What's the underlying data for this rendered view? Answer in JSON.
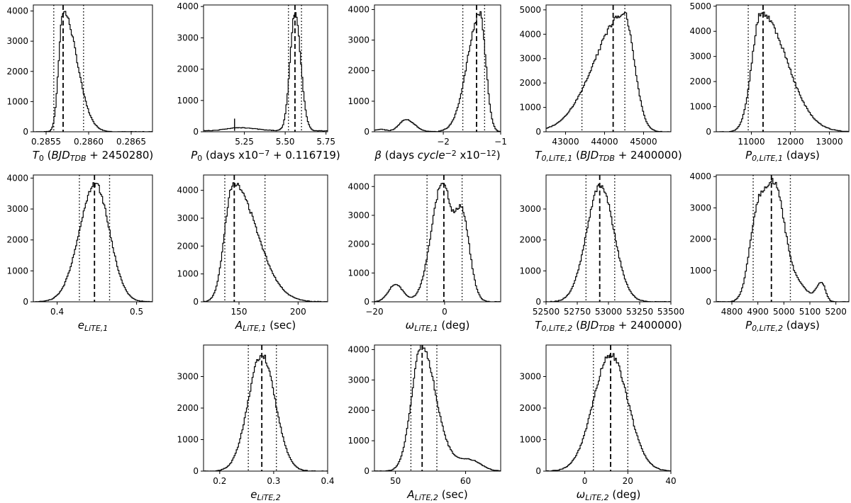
{
  "chart_data": [
    {
      "type": "histogram",
      "panel": "T0",
      "xlim": [
        0.28535,
        0.28675
      ],
      "ylim": [
        0,
        4200
      ],
      "xticks": [
        0.2855,
        0.286,
        0.2865
      ],
      "xtick_labels": [
        "0.2855",
        "0.2860",
        "0.2865"
      ],
      "yticks": [
        0,
        1000,
        2000,
        3000,
        4000
      ],
      "ytick_labels": [
        "0",
        "1000",
        "2000",
        "3000",
        "4000"
      ],
      "xlabel": "T₀ (BJD_TDB + 2450280)",
      "median": 0.2857,
      "lo": 0.28559,
      "hi": 0.28594,
      "components": [
        {
          "mu": 0.2857,
          "sl": 5e-05,
          "sr": 0.00016,
          "a": 4000
        }
      ]
    },
    {
      "type": "histogram",
      "panel": "P0",
      "xlim": [
        5.0,
        5.76
      ],
      "ylim": [
        0,
        4050
      ],
      "xticks": [
        5.25,
        5.5,
        5.75
      ],
      "xtick_labels": [
        "5.25",
        "5.50",
        "5.75"
      ],
      "yticks": [
        0,
        1000,
        2000,
        3000,
        4000
      ],
      "ytick_labels": [
        "0",
        "1000",
        "2000",
        "3000",
        "4000"
      ],
      "xlabel": "P₀ (days x10⁻⁷ + 0.116719)",
      "median": 5.56,
      "lo": 5.52,
      "hi": 5.6,
      "components": [
        {
          "mu": 5.56,
          "sl": 0.03,
          "sr": 0.035,
          "a": 3800
        },
        {
          "mu": 5.22,
          "sl": 0.08,
          "sr": 0.1,
          "a": 100
        }
      ],
      "floor": 30
    },
    {
      "type": "histogram",
      "panel": "beta",
      "xlim": [
        -3.2,
        -1.0
      ],
      "ylim": [
        0,
        4150
      ],
      "xticks": [
        -2,
        -1
      ],
      "xtick_labels": [
        "−2",
        "−1"
      ],
      "yticks": [
        0,
        1000,
        2000,
        3000,
        4000
      ],
      "ytick_labels": [
        "0",
        "1000",
        "2000",
        "3000",
        "4000"
      ],
      "xlabel": "β (days cycle⁻² x10⁻¹²)",
      "median": -1.42,
      "lo": -1.66,
      "hi": -1.28,
      "components": [
        {
          "mu": -1.36,
          "sl": 0.22,
          "sr": 0.1,
          "a": 3850
        },
        {
          "mu": -2.65,
          "sl": 0.12,
          "sr": 0.15,
          "a": 400
        },
        {
          "mu": -3.1,
          "sl": 0.1,
          "sr": 0.1,
          "a": 80
        }
      ]
    },
    {
      "type": "histogram",
      "panel": "T0_LiTE1",
      "xlim": [
        42500,
        45700
      ],
      "ylim": [
        0,
        5200
      ],
      "xticks": [
        43000,
        44000,
        45000
      ],
      "xtick_labels": [
        "43000",
        "44000",
        "45000"
      ],
      "yticks": [
        0,
        1000,
        2000,
        3000,
        4000,
        5000
      ],
      "ytick_labels": [
        "0",
        "1000",
        "2000",
        "3000",
        "4000",
        "5000"
      ],
      "xlabel": "T0,LiTE,1 (BJD_TDB + 2400000)",
      "median": 44220,
      "lo": 43420,
      "hi": 44520,
      "components": [
        {
          "mu": 44500,
          "sl": 750,
          "sr": 260,
          "a": 4850
        }
      ]
    },
    {
      "type": "histogram",
      "panel": "P0_LiTE1",
      "xlim": [
        10100,
        13500
      ],
      "ylim": [
        0,
        5050
      ],
      "xticks": [
        11000,
        12000,
        13000
      ],
      "xtick_labels": [
        "11000",
        "12000",
        "13000"
      ],
      "yticks": [
        0,
        1000,
        2000,
        3000,
        4000,
        5000
      ],
      "ytick_labels": [
        "0",
        "1000",
        "2000",
        "3000",
        "4000",
        "5000"
      ],
      "xlabel": "P0,LiTE,1 (days)",
      "median": 11300,
      "lo": 10920,
      "hi": 12120,
      "components": [
        {
          "mu": 11250,
          "sl": 230,
          "sr": 650,
          "a": 4750
        }
      ]
    },
    {
      "type": "histogram",
      "panel": "e_LiTE1",
      "xlim": [
        0.37,
        0.52
      ],
      "ylim": [
        0,
        4100
      ],
      "xticks": [
        0.4,
        0.5
      ],
      "xtick_labels": [
        "0.4",
        "0.5"
      ],
      "yticks": [
        0,
        1000,
        2000,
        3000,
        4000
      ],
      "ytick_labels": [
        "0",
        "1000",
        "2000",
        "3000",
        "4000"
      ],
      "xlabel": "e_LiTE,1",
      "median": 0.447,
      "lo": 0.428,
      "hi": 0.466,
      "components": [
        {
          "mu": 0.448,
          "sl": 0.02,
          "sr": 0.018,
          "a": 3800
        }
      ]
    },
    {
      "type": "histogram",
      "panel": "A_LiTE1",
      "xlim": [
        120,
        225
      ],
      "ylim": [
        0,
        4550
      ],
      "xticks": [
        150,
        200
      ],
      "xtick_labels": [
        "150",
        "200"
      ],
      "yticks": [
        0,
        1000,
        2000,
        3000,
        4000
      ],
      "ytick_labels": [
        "0",
        "1000",
        "2000",
        "3000",
        "4000"
      ],
      "xlabel": "A_LiTE,1 (sec)",
      "median": 146,
      "lo": 138,
      "hi": 172,
      "components": [
        {
          "mu": 145,
          "sl": 7,
          "sr": 20,
          "a": 4250
        }
      ]
    },
    {
      "type": "histogram",
      "panel": "omega_LiTE1",
      "xlim": [
        -20,
        16
      ],
      "ylim": [
        0,
        4400
      ],
      "xticks": [
        -20,
        0
      ],
      "xtick_labels": [
        "−20",
        "0"
      ],
      "yticks": [
        0,
        1000,
        2000,
        3000,
        4000
      ],
      "ytick_labels": [
        "0",
        "1000",
        "2000",
        "3000",
        "4000"
      ],
      "xlabel": "ω_LiTE,1 (deg)",
      "median": -0.2,
      "lo": -5,
      "hi": 5,
      "components": [
        {
          "mu": -0.5,
          "sl": 3.2,
          "sr": 2.5,
          "a": 4150
        },
        {
          "mu": 5.0,
          "sl": 1.8,
          "sr": 2.2,
          "a": 2900
        },
        {
          "mu": -14.0,
          "sl": 2.0,
          "sr": 2.2,
          "a": 600
        }
      ]
    },
    {
      "type": "histogram",
      "panel": "T0_LiTE2",
      "xlim": [
        52500,
        53500
      ],
      "ylim": [
        0,
        4100
      ],
      "xticks": [
        52500,
        52750,
        53000,
        53250,
        53500
      ],
      "xtick_labels": [
        "52500",
        "52750",
        "53000",
        "53250",
        "53500"
      ],
      "yticks": [
        0,
        1000,
        2000,
        3000
      ],
      "ytick_labels": [
        "0",
        "1000",
        "2000",
        "3000"
      ],
      "xlabel": "T0,LiTE,2 (BJD_TDB + 2400000)",
      "median": 52930,
      "lo": 52820,
      "hi": 53050,
      "components": [
        {
          "mu": 52935,
          "sl": 110,
          "sr": 110,
          "a": 3750
        }
      ]
    },
    {
      "type": "histogram",
      "panel": "P0_LiTE2",
      "xlim": [
        4740,
        5250
      ],
      "ylim": [
        0,
        4050
      ],
      "xticks": [
        4800,
        4900,
        5000,
        5100,
        5200
      ],
      "xtick_labels": [
        "4800",
        "4900",
        "5000",
        "5100",
        "5200"
      ],
      "yticks": [
        0,
        1000,
        2000,
        3000,
        4000
      ],
      "ytick_labels": [
        "0",
        "1000",
        "2000",
        "3000",
        "4000"
      ],
      "xlabel": "P0,LiTE,2 (days)",
      "median": 4952,
      "lo": 4882,
      "hi": 5025,
      "components": [
        {
          "mu": 4965,
          "sl": 40,
          "sr": 40,
          "a": 3650
        },
        {
          "mu": 4895,
          "sl": 30,
          "sr": 30,
          "a": 2300
        },
        {
          "mu": 5145,
          "sl": 20,
          "sr": 15,
          "a": 600
        },
        {
          "mu": 5060,
          "sl": 35,
          "sr": 35,
          "a": 450
        }
      ]
    },
    {
      "type": "histogram",
      "panel": "e_LiTE2",
      "xlim": [
        0.17,
        0.4
      ],
      "ylim": [
        0,
        4000
      ],
      "xticks": [
        0.2,
        0.3,
        0.4
      ],
      "xtick_labels": [
        "0.2",
        "0.3",
        "0.4"
      ],
      "yticks": [
        0,
        1000,
        2000,
        3000
      ],
      "ytick_labels": [
        "0",
        "1000",
        "2000",
        "3000"
      ],
      "xlabel": "e_LiTE,2",
      "median": 0.278,
      "lo": 0.253,
      "hi": 0.305,
      "components": [
        {
          "mu": 0.278,
          "sl": 0.025,
          "sr": 0.025,
          "a": 3700
        }
      ]
    },
    {
      "type": "histogram",
      "panel": "A_LiTE2",
      "xlim": [
        47,
        65
      ],
      "ylim": [
        0,
        4150
      ],
      "xticks": [
        50,
        60
      ],
      "xtick_labels": [
        "50",
        "60"
      ],
      "yticks": [
        0,
        1000,
        2000,
        3000,
        4000
      ],
      "ytick_labels": [
        "0",
        "1000",
        "2000",
        "3000",
        "4000"
      ],
      "xlabel": "A_LiTE,2 (sec)",
      "median": 53.8,
      "lo": 52.2,
      "hi": 55.9,
      "components": [
        {
          "mu": 53.7,
          "sl": 1.4,
          "sr": 1.8,
          "a": 3950
        },
        {
          "mu": 60.8,
          "sl": 1.5,
          "sr": 1.5,
          "a": 330
        },
        {
          "mu": 56.5,
          "sl": 2.0,
          "sr": 2.0,
          "a": 500
        }
      ]
    },
    {
      "type": "histogram",
      "panel": "omega_LiTE2",
      "xlim": [
        -18,
        40
      ],
      "ylim": [
        0,
        4000
      ],
      "xticks": [
        0,
        20,
        40
      ],
      "xtick_labels": [
        "0",
        "20",
        "40"
      ],
      "yticks": [
        0,
        1000,
        2000,
        3000
      ],
      "ytick_labels": [
        "0",
        "1000",
        "2000",
        "3000"
      ],
      "xlabel": "ω_LiTE,2 (deg)",
      "median": 12,
      "lo": 4,
      "hi": 20,
      "components": [
        {
          "mu": 12,
          "sl": 8,
          "sr": 8,
          "a": 3700
        }
      ]
    }
  ]
}
